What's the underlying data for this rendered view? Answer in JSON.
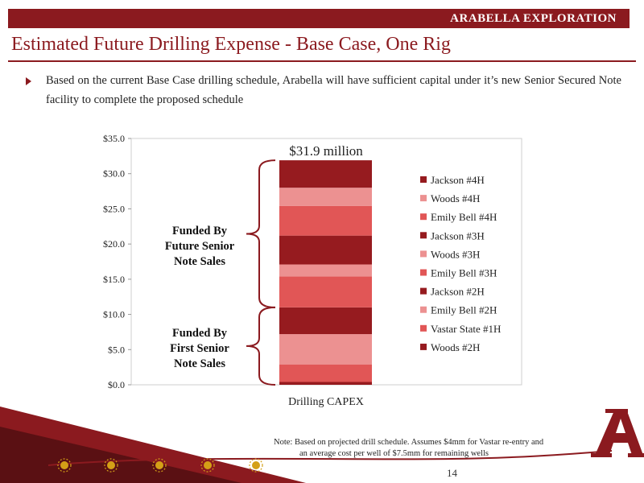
{
  "header": {
    "brand": "ARABELLA EXPLORATION"
  },
  "page": {
    "title": "Estimated Future Drilling Expense  - Base Case, One Rig",
    "bullet": "Based on the current Base Case drilling schedule, Arabella will have sufficient capital under it’s new Senior Secured Note facility to complete the proposed schedule",
    "note_line1": "Note: Based on projected drill schedule. Assumes $4mm for Vastar re-entry and",
    "note_line2": "an average cost per well of $7.5mm for remaining wells",
    "page_number": "14"
  },
  "annotations": {
    "future_label": [
      "Funded By",
      "Future Senior",
      "Note Sales"
    ],
    "first_label": [
      "Funded By",
      "First Senior",
      "Note Sales"
    ]
  },
  "colors": {
    "brand": "#8b1a1f",
    "dark_red": "#961b1f",
    "pink": "#ec9191",
    "red": "#e15656",
    "gold": "#d4a017"
  },
  "chart_data": {
    "type": "bar",
    "stacked": true,
    "categories": [
      "Drilling CAPEX"
    ],
    "y_ticks": [
      "$0.0",
      "$5.0",
      "$10.0",
      "$15.0",
      "$20.0",
      "$25.0",
      "$30.0",
      "$35.0"
    ],
    "ylim": [
      0,
      35
    ],
    "total_label": "$31.9 million",
    "legend_position": "right",
    "series": [
      {
        "name": "Woods #2H",
        "values": [
          0.4
        ],
        "color": "#961b1f"
      },
      {
        "name": "Vastar State #1H",
        "values": [
          2.5
        ],
        "color": "#e15656"
      },
      {
        "name": "Emily Bell #2H",
        "values": [
          4.3
        ],
        "color": "#ec9191"
      },
      {
        "name": "Jackson #2H",
        "values": [
          3.8
        ],
        "color": "#961b1f"
      },
      {
        "name": "Emily Bell #3H",
        "values": [
          4.4
        ],
        "color": "#e15656"
      },
      {
        "name": "Woods #3H",
        "values": [
          1.7
        ],
        "color": "#ec9191"
      },
      {
        "name": "Jackson #3H",
        "values": [
          4.1
        ],
        "color": "#961b1f"
      },
      {
        "name": "Emily Bell #4H",
        "values": [
          4.2
        ],
        "color": "#e15656"
      },
      {
        "name": "Woods #4H",
        "values": [
          2.6
        ],
        "color": "#ec9191"
      },
      {
        "name": "Jackson #4H",
        "values": [
          3.9
        ],
        "color": "#961b1f"
      }
    ]
  }
}
